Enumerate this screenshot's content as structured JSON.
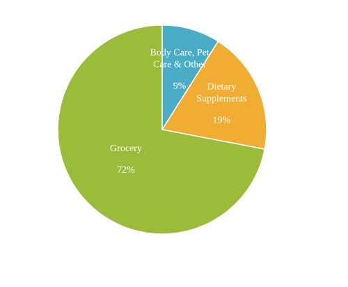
{
  "chart_data": {
    "type": "pie",
    "categories": [
      "Body Care, Pet Care & Other",
      "Dietary Supplements",
      "Grocery"
    ],
    "values": [
      9,
      19,
      72
    ],
    "value_labels": [
      "9%",
      "19%",
      "72%"
    ],
    "colors": [
      "#4bacc6",
      "#f0ad32",
      "#9bbb3a"
    ]
  }
}
